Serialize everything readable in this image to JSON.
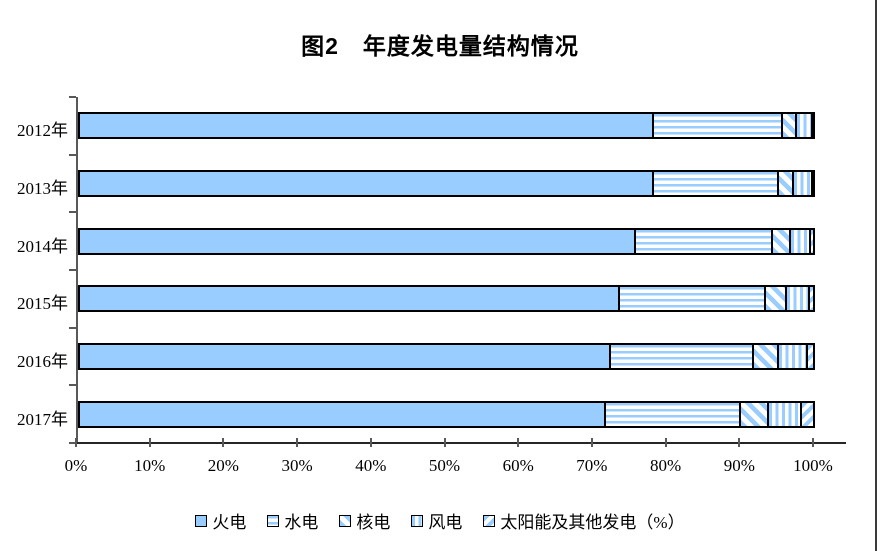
{
  "chart_data": {
    "type": "bar",
    "stacked": true,
    "orientation": "horizontal",
    "title": "图2　年度发电量结构情况",
    "categories": [
      "2012年",
      "2013年",
      "2014年",
      "2015年",
      "2016年",
      "2017年"
    ],
    "series": [
      {
        "name": "火电",
        "pattern": "solid",
        "values": [
          78.1,
          78.2,
          75.7,
          73.6,
          72.3,
          71.7
        ]
      },
      {
        "name": "水电",
        "pattern": "horizontal-stripes",
        "values": [
          17.5,
          16.9,
          18.6,
          19.7,
          19.4,
          18.3
        ]
      },
      {
        "name": "核电",
        "pattern": "diagonal-stripes-down",
        "values": [
          2.0,
          2.1,
          2.4,
          2.9,
          3.4,
          3.8
        ]
      },
      {
        "name": "风电",
        "pattern": "vertical-stripes",
        "values": [
          2.1,
          2.5,
          2.8,
          3.1,
          4.0,
          4.4
        ]
      },
      {
        "name": "太阳能及其他发电（%）",
        "pattern": "diagonal-stripes-up",
        "values": [
          0.3,
          0.3,
          0.5,
          0.7,
          0.9,
          1.8
        ]
      }
    ],
    "x_ticks": [
      "0%",
      "10%",
      "20%",
      "30%",
      "40%",
      "50%",
      "60%",
      "70%",
      "80%",
      "90%",
      "100%"
    ],
    "xlim": [
      0,
      100
    ],
    "unit": "%",
    "grid": false,
    "legend_position": "bottom",
    "colors": {
      "series_fill": "#99CCFF",
      "segment_border": "#000000",
      "axis": "#595959",
      "text": "#000000",
      "background": "#FFFFFF"
    }
  }
}
